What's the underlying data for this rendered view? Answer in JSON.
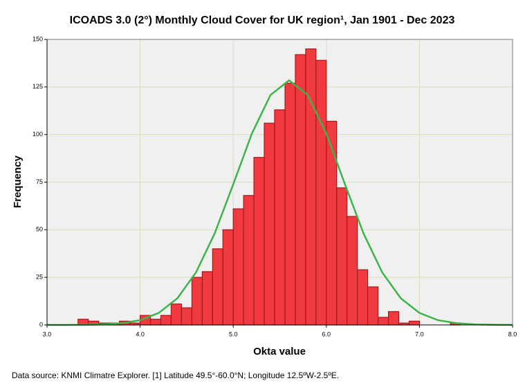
{
  "chart_data": {
    "type": "histogram",
    "title": "ICOADS 3.0 (2°) Monthly Cloud Cover for UK region¹, Jan 1901 - Dec 2023",
    "xlabel": "Okta value",
    "ylabel": "Frequency",
    "bins": [
      3.333,
      3.444,
      3.556,
      3.667,
      3.778,
      3.889,
      4.0,
      4.111,
      4.222,
      4.333,
      4.444,
      4.556,
      4.667,
      4.778,
      4.889,
      5.0,
      5.111,
      5.222,
      5.333,
      5.444,
      5.556,
      5.667,
      5.778,
      5.889,
      6.0,
      6.111,
      6.222,
      6.333,
      6.444,
      6.556,
      6.667,
      6.778,
      6.889,
      7.0,
      7.111,
      7.222,
      7.333,
      7.444
    ],
    "values": [
      3,
      2,
      1,
      1,
      2,
      1,
      5,
      3,
      5,
      11,
      9,
      25,
      28,
      40,
      50,
      61,
      68,
      88,
      106,
      113,
      127,
      142,
      145,
      139,
      107,
      72,
      57,
      29,
      20,
      4,
      7,
      1,
      2,
      0,
      0,
      0,
      1
    ],
    "color": "#f03a3f",
    "edgecolor": "#a3191e",
    "curve": {
      "color": "#3cb44a",
      "x": [
        3.0,
        3.2,
        3.4,
        3.6,
        3.8,
        4.0,
        4.2,
        4.4,
        4.6,
        4.8,
        5.0,
        5.2,
        5.4,
        5.6,
        5.8,
        6.0,
        6.2,
        6.4,
        6.6,
        6.8,
        7.0,
        7.2,
        7.4,
        7.6,
        7.8,
        8.0
      ],
      "values": [
        0,
        0.02,
        0.07,
        0.27,
        0.9,
        2.5,
        6.3,
        14.0,
        27.6,
        48.0,
        73.9,
        100.5,
        120.8,
        128.5,
        120.8,
        100.5,
        73.9,
        48.0,
        27.6,
        14.0,
        6.3,
        2.5,
        0.9,
        0.27,
        0.07,
        0.02
      ]
    },
    "xlim": [
      3,
      8
    ],
    "xticks": [
      {
        "value": 3,
        "label": "3.0"
      },
      {
        "value": 4,
        "label": "4.0"
      },
      {
        "value": 5,
        "label": "5.0"
      },
      {
        "value": 6,
        "label": "6.0"
      },
      {
        "value": 7,
        "label": "7.0"
      },
      {
        "value": 8,
        "label": "8.0"
      }
    ],
    "ylim": [
      0,
      150
    ],
    "yticks": [
      0,
      25,
      50,
      75,
      100,
      125,
      150
    ],
    "grid": true
  },
  "footnote": "Data source: KNMI Climatre Explorer. [1] Latitude 49.5°-60.0°N; Longitude 12.5ºW-2.5ºE."
}
